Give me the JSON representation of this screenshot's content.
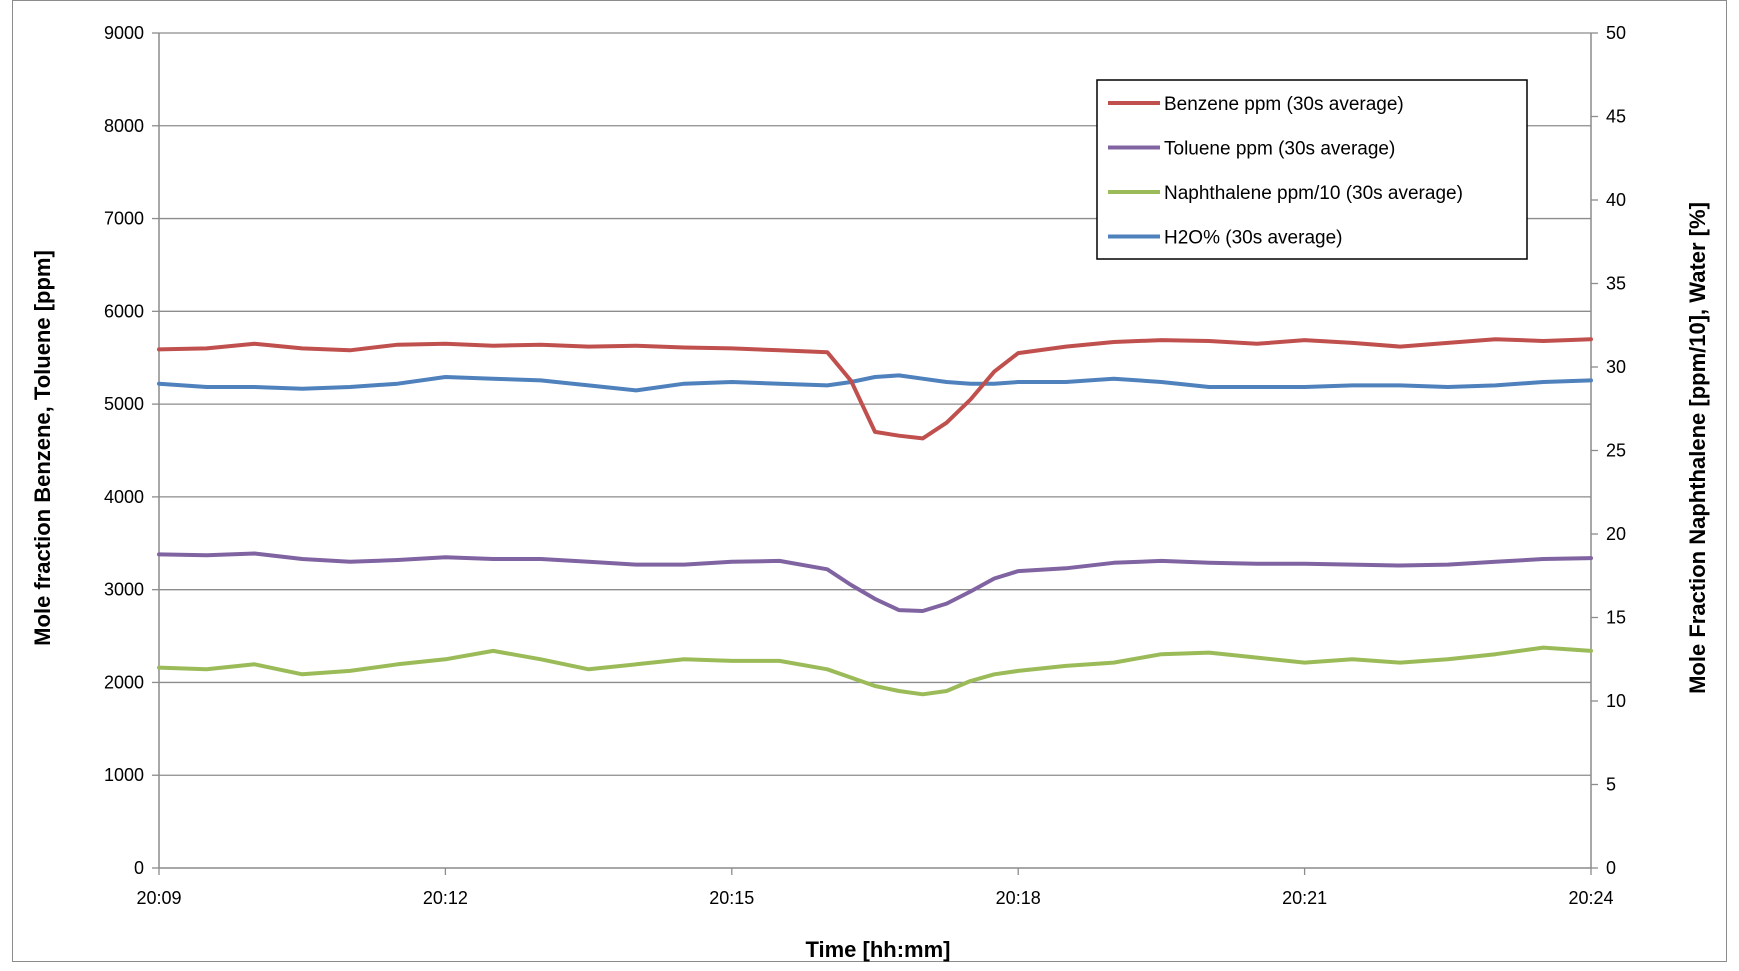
{
  "chart_data": {
    "type": "line",
    "title": "",
    "xlabel": "Time [hh:mm]",
    "ylabel": "Mole fraction Benzene, Toluene [ppm]",
    "y2label": "Mole Fraction Naphthalene [ppm/10], Water [%]",
    "x_ticks": [
      "20:09",
      "20:12",
      "20:15",
      "20:18",
      "20:21",
      "20:24"
    ],
    "xlim_minutes": [
      0,
      15
    ],
    "ylim": [
      0,
      9000
    ],
    "y_ticks": [
      "0",
      "1000",
      "2000",
      "3000",
      "4000",
      "5000",
      "6000",
      "7000",
      "8000",
      "9000"
    ],
    "y2lim": [
      0,
      50
    ],
    "y2_ticks": [
      "0",
      "5",
      "10",
      "15",
      "20",
      "25",
      "30",
      "35",
      "40",
      "45",
      "50"
    ],
    "grid": "horizontal",
    "legend_position": "top-right",
    "x_minutes": [
      0,
      0.5,
      1,
      1.5,
      2,
      2.5,
      3,
      3.5,
      4,
      4.5,
      5,
      5.5,
      6,
      6.5,
      7,
      7.25,
      7.5,
      7.75,
      8,
      8.25,
      8.5,
      8.75,
      9,
      9.5,
      10,
      10.5,
      11,
      11.5,
      12,
      12.5,
      13,
      13.5,
      14,
      14.5,
      15
    ],
    "series": [
      {
        "name": "Benzene ppm (30s average)",
        "axis": "left",
        "color": "#c0504d",
        "values": [
          5590,
          5600,
          5650,
          5600,
          5580,
          5640,
          5650,
          5630,
          5640,
          5620,
          5630,
          5610,
          5600,
          5580,
          5560,
          5250,
          4700,
          4660,
          4630,
          4800,
          5050,
          5350,
          5550,
          5620,
          5670,
          5690,
          5680,
          5650,
          5690,
          5660,
          5620,
          5660,
          5700,
          5680,
          5700
        ]
      },
      {
        "name": "Toluene  ppm (30s average)",
        "axis": "left",
        "color": "#8064a2",
        "values": [
          3380,
          3370,
          3390,
          3330,
          3300,
          3320,
          3350,
          3330,
          3330,
          3300,
          3270,
          3270,
          3300,
          3310,
          3220,
          3050,
          2900,
          2780,
          2770,
          2850,
          2980,
          3120,
          3200,
          3230,
          3290,
          3310,
          3290,
          3280,
          3280,
          3270,
          3260,
          3270,
          3300,
          3330,
          3340
        ]
      },
      {
        "name": "Naphthalene ppm/10  (30s average)",
        "axis": "right",
        "color": "#9bbb59",
        "values": [
          12.0,
          11.9,
          12.2,
          11.6,
          11.8,
          12.2,
          12.5,
          13.0,
          12.5,
          11.9,
          12.2,
          12.5,
          12.4,
          12.4,
          11.9,
          11.4,
          10.9,
          10.6,
          10.4,
          10.6,
          11.2,
          11.6,
          11.8,
          12.1,
          12.3,
          12.8,
          12.9,
          12.6,
          12.3,
          12.5,
          12.3,
          12.5,
          12.8,
          13.2,
          13.0
        ]
      },
      {
        "name": "H2O% (30s average)",
        "axis": "right",
        "color": "#4f81bd",
        "values": [
          29.0,
          28.8,
          28.8,
          28.7,
          28.8,
          29.0,
          29.4,
          29.3,
          29.2,
          28.9,
          28.6,
          29.0,
          29.1,
          29.0,
          28.9,
          29.1,
          29.4,
          29.5,
          29.3,
          29.1,
          29.0,
          29.0,
          29.1,
          29.1,
          29.3,
          29.1,
          28.8,
          28.8,
          28.8,
          28.9,
          28.9,
          28.8,
          28.9,
          29.1,
          29.2
        ]
      }
    ]
  }
}
